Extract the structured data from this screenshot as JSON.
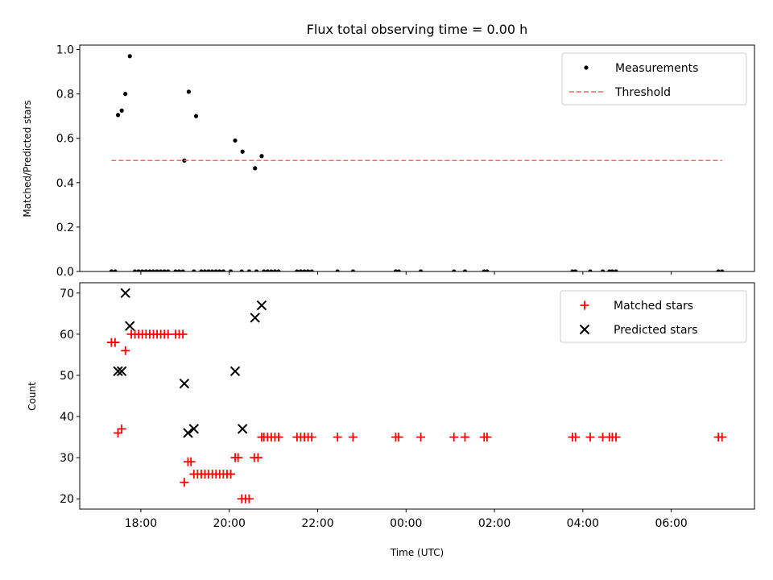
{
  "chart_data": [
    {
      "type": "scatter",
      "title": "Flux total observing time = 0.00 h",
      "xlabel": "",
      "ylabel": "Matched/Predicted stars",
      "xlim": [
        "16:37",
        "07:53"
      ],
      "ylim": [
        0,
        1.02
      ],
      "yticks": [
        "0.0",
        "0.2",
        "0.4",
        "0.6",
        "0.8",
        "1.0"
      ],
      "legend_position": "top-right",
      "series": [
        {
          "name": "Measurements",
          "marker": "dot",
          "color": "#000000",
          "points": [
            {
              "x": "17:20",
              "y": 0.0
            },
            {
              "x": "17:25",
              "y": 0.0
            },
            {
              "x": "17:29",
              "y": 0.705
            },
            {
              "x": "17:34",
              "y": 0.725
            },
            {
              "x": "17:39",
              "y": 0.8
            },
            {
              "x": "17:45",
              "y": 0.97
            },
            {
              "x": "17:52",
              "y": 0.0
            },
            {
              "x": "17:57",
              "y": 0.0
            },
            {
              "x": "18:02",
              "y": 0.0
            },
            {
              "x": "18:07",
              "y": 0.0
            },
            {
              "x": "18:12",
              "y": 0.0
            },
            {
              "x": "18:17",
              "y": 0.0
            },
            {
              "x": "18:22",
              "y": 0.0
            },
            {
              "x": "18:27",
              "y": 0.0
            },
            {
              "x": "18:32",
              "y": 0.0
            },
            {
              "x": "18:37",
              "y": 0.0
            },
            {
              "x": "18:47",
              "y": 0.0
            },
            {
              "x": "18:52",
              "y": 0.0
            },
            {
              "x": "18:57",
              "y": 0.0
            },
            {
              "x": "18:59",
              "y": 0.5
            },
            {
              "x": "19:05",
              "y": 0.81
            },
            {
              "x": "19:15",
              "y": 0.7
            },
            {
              "x": "19:12",
              "y": 0.0
            },
            {
              "x": "19:22",
              "y": 0.0
            },
            {
              "x": "19:27",
              "y": 0.0
            },
            {
              "x": "19:32",
              "y": 0.0
            },
            {
              "x": "19:37",
              "y": 0.0
            },
            {
              "x": "19:42",
              "y": 0.0
            },
            {
              "x": "19:47",
              "y": 0.0
            },
            {
              "x": "19:52",
              "y": 0.0
            },
            {
              "x": "20:02",
              "y": 0.0
            },
            {
              "x": "20:08",
              "y": 0.59
            },
            {
              "x": "20:17",
              "y": 0.0
            },
            {
              "x": "20:18",
              "y": 0.54
            },
            {
              "x": "20:27",
              "y": 0.0
            },
            {
              "x": "20:35",
              "y": 0.465
            },
            {
              "x": "20:37",
              "y": 0.0
            },
            {
              "x": "20:44",
              "y": 0.52
            },
            {
              "x": "20:47",
              "y": 0.0
            },
            {
              "x": "20:52",
              "y": 0.0
            },
            {
              "x": "20:57",
              "y": 0.0
            },
            {
              "x": "21:02",
              "y": 0.0
            },
            {
              "x": "21:07",
              "y": 0.0
            },
            {
              "x": "21:32",
              "y": 0.0
            },
            {
              "x": "21:37",
              "y": 0.0
            },
            {
              "x": "21:42",
              "y": 0.0
            },
            {
              "x": "21:47",
              "y": 0.0
            },
            {
              "x": "21:52",
              "y": 0.0
            },
            {
              "x": "22:27",
              "y": 0.0
            },
            {
              "x": "22:48",
              "y": 0.0
            },
            {
              "x": "23:46",
              "y": 0.0
            },
            {
              "x": "23:50",
              "y": 0.0
            },
            {
              "x": "00:20",
              "y": 0.0
            },
            {
              "x": "01:05",
              "y": 0.0
            },
            {
              "x": "01:20",
              "y": 0.0
            },
            {
              "x": "01:46",
              "y": 0.0
            },
            {
              "x": "01:50",
              "y": 0.0
            },
            {
              "x": "03:46",
              "y": 0.0
            },
            {
              "x": "03:50",
              "y": 0.0
            },
            {
              "x": "04:10",
              "y": 0.0
            },
            {
              "x": "04:27",
              "y": 0.0
            },
            {
              "x": "04:36",
              "y": 0.0
            },
            {
              "x": "04:40",
              "y": 0.0
            },
            {
              "x": "04:45",
              "y": 0.0
            },
            {
              "x": "07:04",
              "y": 0.0
            },
            {
              "x": "07:09",
              "y": 0.0
            }
          ]
        },
        {
          "name": "Threshold",
          "line": "dashed",
          "color": "#ff6666",
          "points": [
            {
              "x": "17:20",
              "y": 0.5
            },
            {
              "x": "07:09",
              "y": 0.5
            }
          ]
        }
      ]
    },
    {
      "type": "scatter",
      "title": "",
      "xlabel": "Time (UTC)",
      "ylabel": "Count",
      "xlim": [
        "16:37",
        "07:53"
      ],
      "ylim": [
        17.5,
        72.5
      ],
      "yticks": [
        "20",
        "30",
        "40",
        "50",
        "60",
        "70"
      ],
      "xticks": [
        "18:00",
        "20:00",
        "22:00",
        "00:00",
        "02:00",
        "04:00",
        "06:00"
      ],
      "legend_position": "top-right",
      "series": [
        {
          "name": "Matched stars",
          "marker": "plus",
          "color": "#ff0000",
          "points": [
            {
              "x": "17:20",
              "y": 58
            },
            {
              "x": "17:25",
              "y": 58
            },
            {
              "x": "17:29",
              "y": 36
            },
            {
              "x": "17:34",
              "y": 37
            },
            {
              "x": "17:39",
              "y": 56
            },
            {
              "x": "17:47",
              "y": 60
            },
            {
              "x": "17:52",
              "y": 60
            },
            {
              "x": "17:57",
              "y": 60
            },
            {
              "x": "18:02",
              "y": 60
            },
            {
              "x": "18:07",
              "y": 60
            },
            {
              "x": "18:12",
              "y": 60
            },
            {
              "x": "18:17",
              "y": 60
            },
            {
              "x": "18:22",
              "y": 60
            },
            {
              "x": "18:27",
              "y": 60
            },
            {
              "x": "18:32",
              "y": 60
            },
            {
              "x": "18:37",
              "y": 60
            },
            {
              "x": "18:47",
              "y": 60
            },
            {
              "x": "18:52",
              "y": 60
            },
            {
              "x": "18:57",
              "y": 60
            },
            {
              "x": "18:59",
              "y": 24
            },
            {
              "x": "19:04",
              "y": 29
            },
            {
              "x": "19:08",
              "y": 29
            },
            {
              "x": "19:12",
              "y": 26
            },
            {
              "x": "19:17",
              "y": 26
            },
            {
              "x": "19:22",
              "y": 26
            },
            {
              "x": "19:27",
              "y": 26
            },
            {
              "x": "19:32",
              "y": 26
            },
            {
              "x": "19:37",
              "y": 26
            },
            {
              "x": "19:42",
              "y": 26
            },
            {
              "x": "19:47",
              "y": 26
            },
            {
              "x": "19:52",
              "y": 26
            },
            {
              "x": "19:57",
              "y": 26
            },
            {
              "x": "20:02",
              "y": 26
            },
            {
              "x": "20:08",
              "y": 30
            },
            {
              "x": "20:12",
              "y": 30
            },
            {
              "x": "20:17",
              "y": 20
            },
            {
              "x": "20:22",
              "y": 20
            },
            {
              "x": "20:27",
              "y": 20
            },
            {
              "x": "20:34",
              "y": 30
            },
            {
              "x": "20:39",
              "y": 30
            },
            {
              "x": "20:44",
              "y": 35
            },
            {
              "x": "20:47",
              "y": 35
            },
            {
              "x": "20:52",
              "y": 35
            },
            {
              "x": "20:57",
              "y": 35
            },
            {
              "x": "21:02",
              "y": 35
            },
            {
              "x": "21:07",
              "y": 35
            },
            {
              "x": "21:32",
              "y": 35
            },
            {
              "x": "21:37",
              "y": 35
            },
            {
              "x": "21:42",
              "y": 35
            },
            {
              "x": "21:47",
              "y": 35
            },
            {
              "x": "21:52",
              "y": 35
            },
            {
              "x": "22:27",
              "y": 35
            },
            {
              "x": "22:48",
              "y": 35
            },
            {
              "x": "23:46",
              "y": 35
            },
            {
              "x": "23:50",
              "y": 35
            },
            {
              "x": "00:20",
              "y": 35
            },
            {
              "x": "01:05",
              "y": 35
            },
            {
              "x": "01:20",
              "y": 35
            },
            {
              "x": "01:46",
              "y": 35
            },
            {
              "x": "01:50",
              "y": 35
            },
            {
              "x": "03:46",
              "y": 35
            },
            {
              "x": "03:50",
              "y": 35
            },
            {
              "x": "04:10",
              "y": 35
            },
            {
              "x": "04:27",
              "y": 35
            },
            {
              "x": "04:36",
              "y": 35
            },
            {
              "x": "04:40",
              "y": 35
            },
            {
              "x": "04:45",
              "y": 35
            },
            {
              "x": "07:04",
              "y": 35
            },
            {
              "x": "07:09",
              "y": 35
            }
          ]
        },
        {
          "name": "Predicted stars",
          "marker": "x",
          "color": "#000000",
          "points": [
            {
              "x": "17:29",
              "y": 51
            },
            {
              "x": "17:34",
              "y": 51
            },
            {
              "x": "17:39",
              "y": 70
            },
            {
              "x": "17:45",
              "y": 62
            },
            {
              "x": "18:59",
              "y": 48
            },
            {
              "x": "19:04",
              "y": 36
            },
            {
              "x": "19:12",
              "y": 37
            },
            {
              "x": "20:08",
              "y": 51
            },
            {
              "x": "20:18",
              "y": 37
            },
            {
              "x": "20:35",
              "y": 64
            },
            {
              "x": "20:44",
              "y": 67
            }
          ]
        }
      ]
    }
  ]
}
